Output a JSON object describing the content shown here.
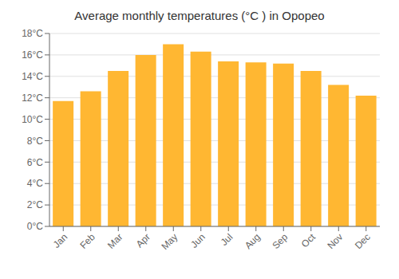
{
  "chart_data": {
    "type": "bar",
    "title": "Average monthly temperatures (°C ) in Opopeo",
    "categories": [
      "Jan",
      "Feb",
      "Mar",
      "Apr",
      "May",
      "Jun",
      "Jul",
      "Aug",
      "Sep",
      "Oct",
      "Nov",
      "Dec"
    ],
    "values": [
      11.7,
      12.6,
      14.5,
      16.0,
      17.0,
      16.3,
      15.4,
      15.3,
      15.2,
      14.5,
      13.2,
      12.2
    ],
    "color": "#FFB732",
    "ylim": [
      0,
      18
    ],
    "yticks": [
      {
        "value": 0,
        "label": "0°C"
      },
      {
        "value": 2,
        "label": "2°C"
      },
      {
        "value": 4,
        "label": "4°C"
      },
      {
        "value": 6,
        "label": "6°C"
      },
      {
        "value": 8,
        "label": "8°C"
      },
      {
        "value": 10,
        "label": "10°C"
      },
      {
        "value": 12,
        "label": "12°C"
      },
      {
        "value": 14,
        "label": "14°C"
      },
      {
        "value": 16,
        "label": "16°C"
      },
      {
        "value": 18,
        "label": "18°C"
      }
    ],
    "grid": true
  }
}
